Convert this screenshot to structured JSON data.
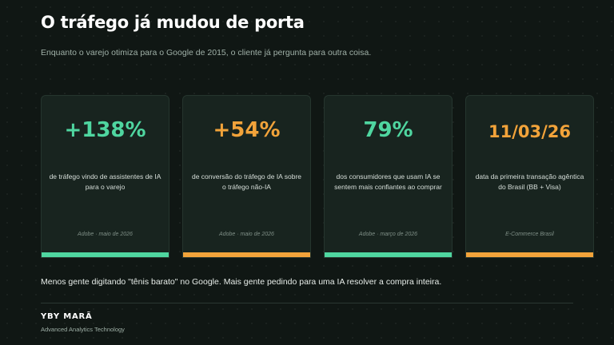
{
  "header": {
    "title": "O tráfego já mudou de porta",
    "subtitle": "Enquanto o varejo otimiza para o Google de 2015, o cliente já pergunta para outra coisa."
  },
  "cards": [
    {
      "stat": "+138%",
      "stat_color": "#4fd6a0",
      "description": "de tráfego vindo de assistentes de IA para o varejo",
      "source": "Adobe · maio de 2026",
      "bar_color": "#4fd6a0"
    },
    {
      "stat": "+54%",
      "stat_color": "#f2a33a",
      "description": "de conversão do tráfego de IA sobre o tráfego não-IA",
      "source": "Adobe · maio de 2026",
      "bar_color": "#f2a33a"
    },
    {
      "stat": "79%",
      "stat_color": "#4fd6a0",
      "description": "dos consumidores que usam IA se sentem mais confiantes ao comprar",
      "source": "Adobe · março de 2026",
      "bar_color": "#4fd6a0"
    },
    {
      "stat": "11/03/26",
      "stat_color": "#f2a33a",
      "description": "data da primeira transação agêntica do Brasil (BB + Visa)",
      "source": "E-Commerce Brasil",
      "bar_color": "#f2a33a"
    }
  ],
  "footer": {
    "message": "Menos gente digitando \"tênis barato\" no Google. Mais gente pedindo para uma IA resolver a compra inteira.",
    "brand": "YBY MARÃ",
    "tagline": "Advanced Analytics Technology"
  },
  "colors": {
    "background": "#101714",
    "card_background": "#18241f",
    "accent_green": "#4fd6a0",
    "accent_orange": "#f2a33a"
  }
}
